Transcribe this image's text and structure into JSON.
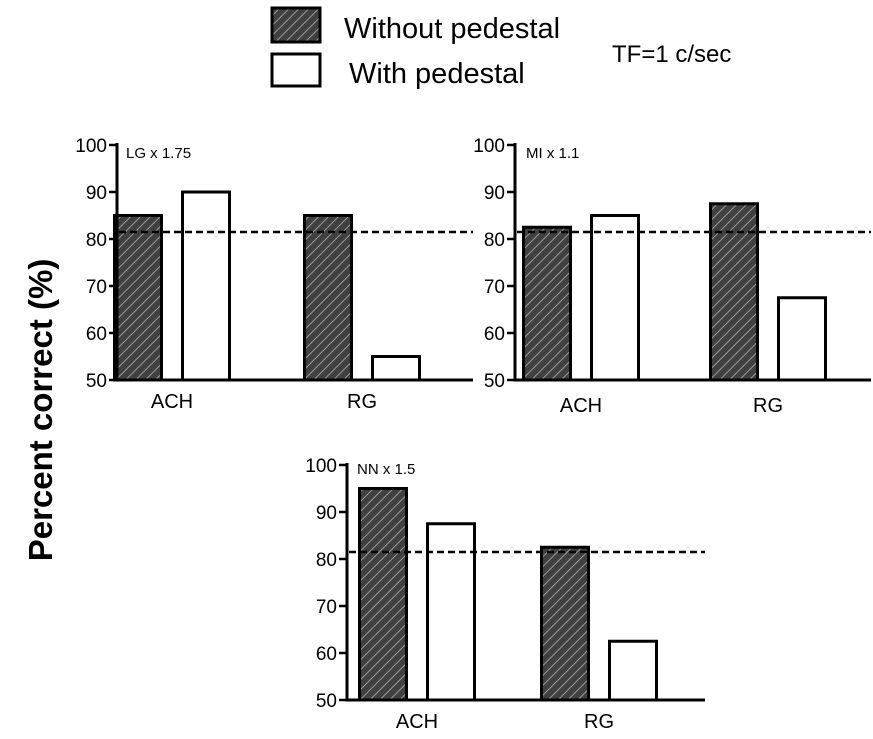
{
  "legend": {
    "items": [
      {
        "label": "Without pedestal",
        "pattern": "hatched"
      },
      {
        "label": "With pedestal",
        "pattern": "open"
      }
    ],
    "note": "TF=1 c/sec"
  },
  "ylabel": "Percent correct (%)",
  "colors": {
    "bar_fill": "#404040",
    "hatch_line": "#9a9a9a",
    "open_fill": "#ffffff",
    "stroke": "#000000"
  },
  "chart_data": [
    {
      "type": "bar",
      "panel_label": "LG x 1.75",
      "categories": [
        "ACH",
        "RG"
      ],
      "series": [
        {
          "name": "Without pedestal",
          "values": [
            85,
            85
          ]
        },
        {
          "name": "With pedestal",
          "values": [
            90,
            55
          ]
        }
      ],
      "ylim": [
        50,
        100
      ],
      "yticks": [
        "50",
        "60",
        "70",
        "80",
        "90",
        "100"
      ],
      "threshold": 81.5
    },
    {
      "type": "bar",
      "panel_label": "MI x 1.1",
      "categories": [
        "ACH",
        "RG"
      ],
      "series": [
        {
          "name": "Without pedestal",
          "values": [
            82.5,
            87.5
          ]
        },
        {
          "name": "With pedestal",
          "values": [
            85,
            67.5
          ]
        }
      ],
      "ylim": [
        50,
        100
      ],
      "yticks": [
        "50",
        "60",
        "70",
        "80",
        "90",
        "100"
      ],
      "threshold": 81.5
    },
    {
      "type": "bar",
      "panel_label": "NN x 1.5",
      "categories": [
        "ACH",
        "RG"
      ],
      "series": [
        {
          "name": "Without pedestal",
          "values": [
            95,
            82.5
          ]
        },
        {
          "name": "With pedestal",
          "values": [
            87.5,
            62.5
          ]
        }
      ],
      "ylim": [
        50,
        100
      ],
      "yticks": [
        "50",
        "60",
        "70",
        "80",
        "90",
        "100"
      ],
      "threshold": 81.5
    }
  ]
}
